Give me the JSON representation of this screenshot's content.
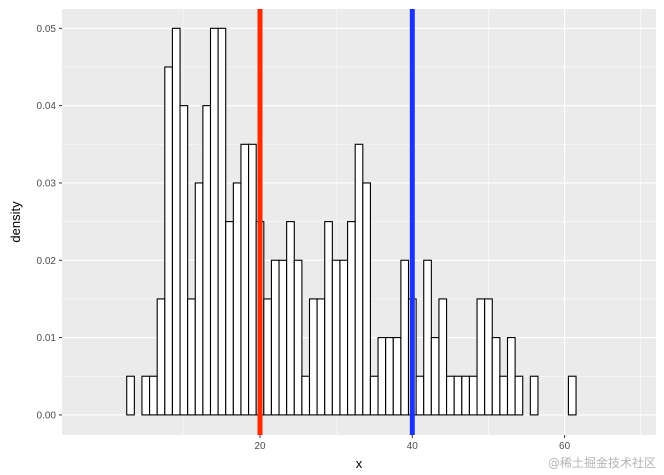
{
  "chart_data": {
    "type": "histogram",
    "title": "",
    "xlabel": "x",
    "ylabel": "density",
    "xlim": [
      -6,
      72
    ],
    "ylim": [
      -0.0026,
      0.0525
    ],
    "binwidth": 1,
    "bin_start": 2.5,
    "values": [
      0.005,
      0,
      0.005,
      0.005,
      0.015,
      0.045,
      0.05,
      0.04,
      0.015,
      0.03,
      0.04,
      0.05,
      0.05,
      0.025,
      0.03,
      0.035,
      0.035,
      0.025,
      0.015,
      0.02,
      0.02,
      0.025,
      0.02,
      0.005,
      0.015,
      0.015,
      0.025,
      0.02,
      0.02,
      0.025,
      0.035,
      0.03,
      0.005,
      0.01,
      0.01,
      0.01,
      0.02,
      0.015,
      0.005,
      0.02,
      0.01,
      0.015,
      0.005,
      0.005,
      0.005,
      0.005,
      0.015,
      0.015,
      0.01,
      0.005,
      0.01,
      0.005,
      0,
      0.005,
      0,
      0,
      0,
      0,
      0.005
    ],
    "x_ticks": [
      20,
      40,
      60
    ],
    "y_ticks": [
      0.0,
      0.01,
      0.02,
      0.03,
      0.04,
      0.05
    ],
    "y_tick_labels": [
      "0.00",
      "0.01",
      "0.02",
      "0.03",
      "0.04",
      "0.05"
    ],
    "vlines": [
      {
        "x": 20,
        "color": "#ff2a00"
      },
      {
        "x": 40,
        "color": "#1a33ff"
      }
    ],
    "grid": true,
    "legend": "none"
  },
  "colors": {
    "panel": "#ebebeb",
    "grid_major": "#ffffff",
    "bar_fill": "#ffffff",
    "bar_stroke": "#000000"
  },
  "watermark": "@稀土掘金技术社区"
}
